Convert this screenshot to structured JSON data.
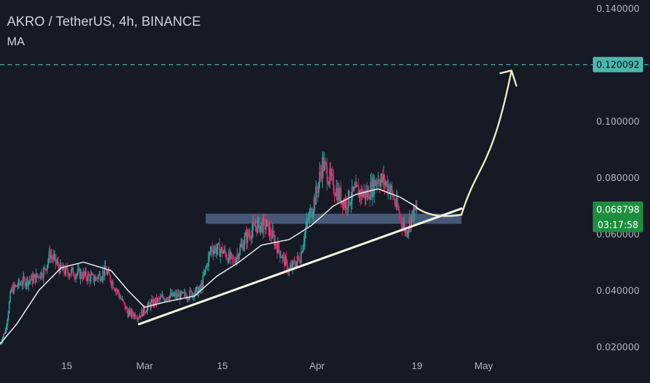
{
  "header": {
    "symbol_title": "AKRO / TetherUS, 4h, BINANCE",
    "indicator": "MA"
  },
  "colors": {
    "background": "#161a25",
    "axis_text": "#b2b5be",
    "up": "#26a69a",
    "down": "#e91e63",
    "ma_line": "#e6e6e6",
    "trendline": "#f2f2e6",
    "support_zone": "#5b7397",
    "target_line": "#4db6ac",
    "arrow": "#eef2c6",
    "last_price_tag": "#1e8e3e"
  },
  "chart_data": {
    "type": "candlestick",
    "title": "AKRO / TetherUS, 4h, BINANCE",
    "ylim": [
      0.017,
      0.143
    ],
    "y_ticks": [
      {
        "value": 0.02,
        "label": "0.020000"
      },
      {
        "value": 0.04,
        "label": "0.040000"
      },
      {
        "value": 0.06,
        "label": "0.060000"
      },
      {
        "value": 0.08,
        "label": "0.080000"
      },
      {
        "value": 0.1,
        "label": "0.100000"
      },
      {
        "value": 0.14,
        "label": "0.140000"
      }
    ],
    "x_ticks": [
      {
        "date": "2021-02-15",
        "label": "15"
      },
      {
        "date": "2021-03-01",
        "label": "Mar"
      },
      {
        "date": "2021-03-15",
        "label": "15"
      },
      {
        "date": "2021-04-01",
        "label": "Apr"
      },
      {
        "date": "2021-04-19",
        "label": "19"
      },
      {
        "date": "2021-05-01",
        "label": "May"
      }
    ],
    "xlim": [
      "2021-02-03",
      "2021-05-20"
    ],
    "price_path": [
      {
        "date": "2021-02-03",
        "price": 0.021
      },
      {
        "date": "2021-02-04",
        "price": 0.026
      },
      {
        "date": "2021-02-05",
        "price": 0.04
      },
      {
        "date": "2021-02-07",
        "price": 0.043
      },
      {
        "date": "2021-02-09",
        "price": 0.044
      },
      {
        "date": "2021-02-11",
        "price": 0.047
      },
      {
        "date": "2021-02-12",
        "price": 0.053
      },
      {
        "date": "2021-02-14",
        "price": 0.047
      },
      {
        "date": "2021-02-17",
        "price": 0.046
      },
      {
        "date": "2021-02-20",
        "price": 0.044
      },
      {
        "date": "2021-02-22",
        "price": 0.047
      },
      {
        "date": "2021-02-24",
        "price": 0.04
      },
      {
        "date": "2021-02-26",
        "price": 0.032
      },
      {
        "date": "2021-02-28",
        "price": 0.031
      },
      {
        "date": "2021-03-02",
        "price": 0.035
      },
      {
        "date": "2021-03-05",
        "price": 0.038
      },
      {
        "date": "2021-03-08",
        "price": 0.038
      },
      {
        "date": "2021-03-11",
        "price": 0.04
      },
      {
        "date": "2021-03-13",
        "price": 0.055
      },
      {
        "date": "2021-03-15",
        "price": 0.054
      },
      {
        "date": "2021-03-17",
        "price": 0.05
      },
      {
        "date": "2021-03-19",
        "price": 0.058
      },
      {
        "date": "2021-03-21",
        "price": 0.063
      },
      {
        "date": "2021-03-23",
        "price": 0.063
      },
      {
        "date": "2021-03-25",
        "price": 0.055
      },
      {
        "date": "2021-03-27",
        "price": 0.047
      },
      {
        "date": "2021-03-29",
        "price": 0.052
      },
      {
        "date": "2021-03-30",
        "price": 0.062
      },
      {
        "date": "2021-04-01",
        "price": 0.075
      },
      {
        "date": "2021-04-02",
        "price": 0.085
      },
      {
        "date": "2021-04-04",
        "price": 0.077
      },
      {
        "date": "2021-04-06",
        "price": 0.071
      },
      {
        "date": "2021-04-08",
        "price": 0.075
      },
      {
        "date": "2021-04-10",
        "price": 0.074
      },
      {
        "date": "2021-04-12",
        "price": 0.08
      },
      {
        "date": "2021-04-14",
        "price": 0.077
      },
      {
        "date": "2021-04-16",
        "price": 0.066
      },
      {
        "date": "2021-04-17",
        "price": 0.061
      },
      {
        "date": "2021-04-18",
        "price": 0.066
      },
      {
        "date": "2021-04-19",
        "price": 0.0688
      }
    ],
    "ma_path": [
      {
        "date": "2021-02-03",
        "price": 0.021
      },
      {
        "date": "2021-02-06",
        "price": 0.028
      },
      {
        "date": "2021-02-10",
        "price": 0.04
      },
      {
        "date": "2021-02-14",
        "price": 0.048
      },
      {
        "date": "2021-02-18",
        "price": 0.05
      },
      {
        "date": "2021-02-23",
        "price": 0.047
      },
      {
        "date": "2021-02-26",
        "price": 0.04
      },
      {
        "date": "2021-03-01",
        "price": 0.034
      },
      {
        "date": "2021-03-05",
        "price": 0.036
      },
      {
        "date": "2021-03-10",
        "price": 0.038
      },
      {
        "date": "2021-03-14",
        "price": 0.045
      },
      {
        "date": "2021-03-18",
        "price": 0.05
      },
      {
        "date": "2021-03-22",
        "price": 0.056
      },
      {
        "date": "2021-03-27",
        "price": 0.058
      },
      {
        "date": "2021-03-31",
        "price": 0.063
      },
      {
        "date": "2021-04-04",
        "price": 0.07
      },
      {
        "date": "2021-04-08",
        "price": 0.074
      },
      {
        "date": "2021-04-12",
        "price": 0.076
      },
      {
        "date": "2021-04-16",
        "price": 0.073
      },
      {
        "date": "2021-04-19",
        "price": 0.0695
      }
    ],
    "trendline": {
      "start": {
        "date": "2021-02-28",
        "price": 0.028
      },
      "end": {
        "date": "2021-04-27",
        "price": 0.069
      }
    },
    "support_zone": {
      "from_date": "2021-03-12",
      "to_date": "2021-04-27",
      "top": 0.0672,
      "bottom": 0.0636
    },
    "target": {
      "price": 0.120092,
      "label": "0.120092"
    },
    "last_price": {
      "price": 0.068798,
      "label": "0.068798",
      "countdown": "03:17:58"
    },
    "projection_arrow": [
      {
        "date": "2021-04-19",
        "price": 0.0692
      },
      {
        "date": "2021-04-22",
        "price": 0.0652
      },
      {
        "date": "2021-04-27",
        "price": 0.0668
      },
      {
        "date": "2021-05-03",
        "price": 0.09
      },
      {
        "date": "2021-05-06",
        "price": 0.118
      }
    ]
  }
}
